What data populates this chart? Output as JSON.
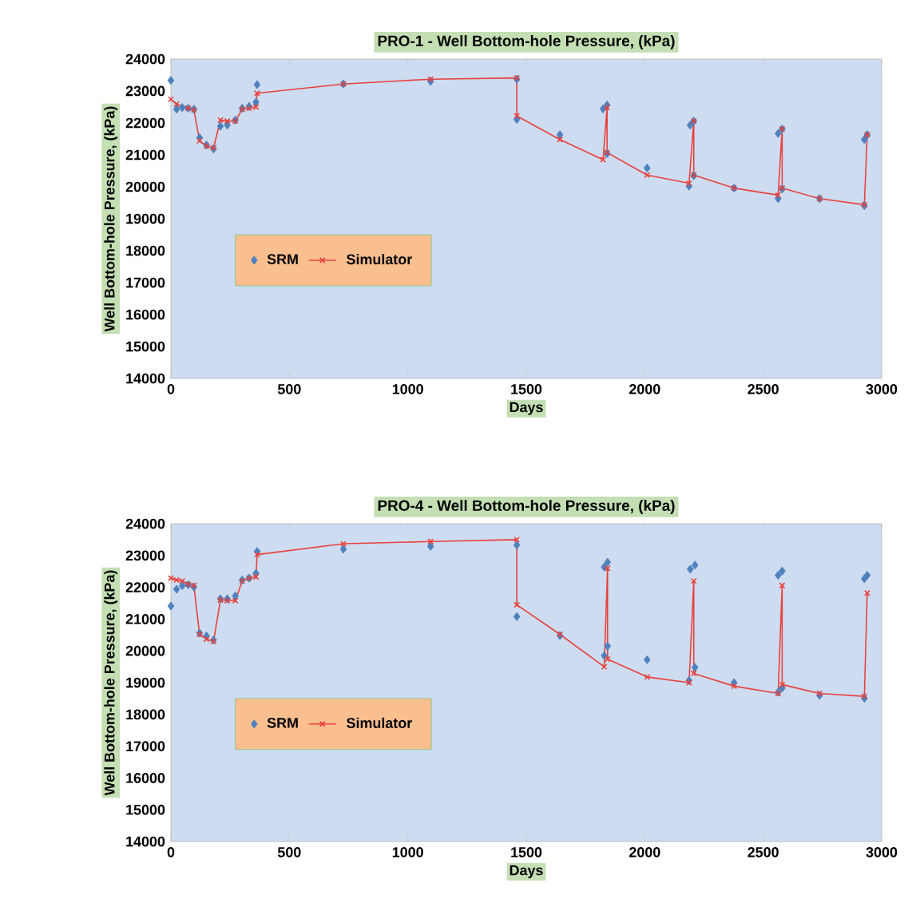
{
  "chart_data": [
    {
      "type": "line",
      "title": "PRO-1 - Well Bottom-hole Pressure, (kPa)",
      "xlabel": "Days",
      "ylabel": "Well Bottom-hole Pressure, (kPa)",
      "xlim": [
        0,
        3000
      ],
      "xticks": [
        0,
        500,
        1000,
        1500,
        2000,
        2500,
        3000
      ],
      "ylim": [
        14000,
        24000
      ],
      "yticks": [
        14000,
        15000,
        16000,
        17000,
        18000,
        19000,
        20000,
        21000,
        22000,
        23000,
        24000
      ],
      "grid": false,
      "legend": "left",
      "series": [
        {
          "name": "SRM",
          "type": "scatter",
          "marker": "diamond",
          "color": "#4f81bd",
          "x": [
            0,
            24,
            48,
            73,
            97,
            121,
            150,
            180,
            209,
            238,
            272,
            301,
            330,
            359,
            364,
            728,
            1096,
            1460,
            1460,
            1642,
            1824,
            1841,
            1841,
            2010,
            2187,
            2192,
            2207,
            2207,
            2377,
            2563,
            2563,
            2580,
            2580,
            2738,
            2927,
            2927,
            2939
          ],
          "values": [
            23330,
            22430,
            22480,
            22460,
            22430,
            21540,
            21310,
            21190,
            21900,
            21930,
            22090,
            22460,
            22520,
            22650,
            23200,
            23220,
            23300,
            23370,
            22110,
            21630,
            22440,
            22560,
            21040,
            20590,
            20020,
            21930,
            22060,
            20350,
            19960,
            19630,
            21670,
            21810,
            19930,
            19630,
            19410,
            21480,
            21630
          ]
        },
        {
          "name": "Simulator",
          "type": "line",
          "marker": "cross",
          "color": "#e8413c",
          "x": [
            0,
            24,
            73,
            97,
            121,
            150,
            180,
            209,
            238,
            272,
            301,
            330,
            359,
            364,
            728,
            1096,
            1460,
            1460,
            1642,
            1824,
            1841,
            1841,
            2010,
            2187,
            2207,
            2207,
            2377,
            2563,
            2580,
            2580,
            2738,
            2927,
            2939
          ],
          "values": [
            22740,
            22590,
            22460,
            22410,
            21440,
            21280,
            21220,
            22090,
            22060,
            22060,
            22430,
            22460,
            22500,
            22930,
            23220,
            23370,
            23410,
            22220,
            21480,
            20850,
            22480,
            21070,
            20370,
            20110,
            22060,
            20370,
            19960,
            19740,
            21810,
            19960,
            19630,
            19440,
            21630
          ]
        }
      ]
    },
    {
      "type": "line",
      "title": "PRO-4 - Well Bottom-hole Pressure, (kPa)",
      "xlabel": "Days",
      "ylabel": "Well Bottom-hole Pressure, (kPa)",
      "xlim": [
        0,
        3000
      ],
      "xticks": [
        0,
        500,
        1000,
        1500,
        2000,
        2500,
        3000
      ],
      "ylim": [
        14000,
        24000
      ],
      "yticks": [
        14000,
        15000,
        16000,
        17000,
        18000,
        19000,
        20000,
        21000,
        22000,
        23000,
        24000
      ],
      "grid": false,
      "legend": "left",
      "series": [
        {
          "name": "SRM",
          "type": "scatter",
          "marker": "diamond",
          "color": "#4f81bd",
          "x": [
            0,
            24,
            48,
            73,
            97,
            121,
            150,
            180,
            209,
            238,
            272,
            301,
            330,
            359,
            364,
            728,
            1096,
            1460,
            1460,
            1642,
            1829,
            1829,
            1843,
            1843,
            2010,
            2187,
            2192,
            2212,
            2212,
            2377,
            2563,
            2563,
            2580,
            2580,
            2738,
            2927,
            2927,
            2939
          ],
          "values": [
            21410,
            21940,
            22050,
            22080,
            22010,
            20560,
            20470,
            20340,
            21640,
            21640,
            21730,
            22230,
            22290,
            22440,
            23130,
            23200,
            23290,
            23330,
            21080,
            20480,
            19850,
            22640,
            22790,
            20150,
            19720,
            19070,
            22570,
            22700,
            19480,
            19000,
            18700,
            22380,
            22510,
            18830,
            18600,
            18510,
            22270,
            22380
          ]
        },
        {
          "name": "Simulator",
          "type": "line",
          "marker": "cross",
          "color": "#e8413c",
          "x": [
            0,
            24,
            48,
            73,
            97,
            121,
            150,
            180,
            209,
            238,
            272,
            301,
            330,
            359,
            364,
            728,
            1096,
            1460,
            1460,
            1642,
            1829,
            1843,
            1843,
            2010,
            2187,
            2207,
            2207,
            2377,
            2563,
            2580,
            2580,
            2738,
            2927,
            2939
          ],
          "values": [
            22290,
            22230,
            22200,
            22100,
            22060,
            20520,
            20370,
            20300,
            21600,
            21580,
            21580,
            22200,
            22290,
            22330,
            23030,
            23370,
            23440,
            23500,
            21450,
            20520,
            19500,
            22600,
            19740,
            19180,
            19000,
            22200,
            19290,
            18890,
            18660,
            22060,
            18940,
            18660,
            18570,
            21820
          ]
        }
      ]
    }
  ]
}
